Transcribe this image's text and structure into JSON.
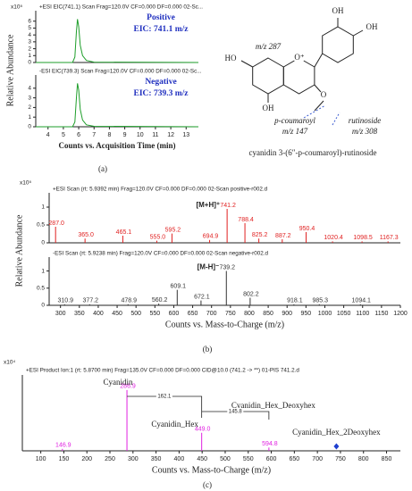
{
  "panel_labels": [
    "(a)",
    "(b)",
    "(c)"
  ],
  "structure": {
    "texts": [
      "HO",
      "OH",
      "OH",
      "OH",
      "O⁺",
      "O",
      "m/z 287",
      "p-coumaroyl",
      "rutinoside",
      "m/z 147",
      "m/z 308"
    ],
    "caption": "cyanidin 3-(6″-p-coumaroyl)-rutinoside"
  },
  "chart_data": [
    {
      "type": "line",
      "y_multiplier": "x10⁵",
      "header": "+ESI EIC(741.1) Scan Frag=120.0V CF=0.000 DF=0.000 02-Sc...",
      "annotations": [
        "Positive",
        "EIC: 741.1 m/z"
      ],
      "ylabel": "Relative Abundance",
      "x": [
        3.2,
        5.6,
        5.75,
        5.85,
        5.92,
        6.0,
        6.1,
        6.25,
        6.5,
        7,
        13.8
      ],
      "values": [
        0,
        0,
        0.8,
        4.5,
        6.3,
        5.2,
        2.5,
        1.0,
        0.3,
        0.05,
        0
      ],
      "color": "#1e9e2a",
      "xlim": [
        3.2,
        13.8
      ],
      "ylim": [
        0,
        7
      ],
      "yticks": [
        0,
        1,
        2,
        3,
        4,
        5,
        6
      ]
    },
    {
      "type": "line",
      "header": "-ESI EIC(739.3) Scan Frag=120.0V CF=0.000 DF=0.000 02-Sc...",
      "annotations": [
        "Negative",
        "EIC: 739.3 m/z"
      ],
      "xlabel": "Counts vs. Acquisition Time (min)",
      "x": [
        3.2,
        5.6,
        5.75,
        5.85,
        5.92,
        6.0,
        6.1,
        6.25,
        6.5,
        7,
        13.8
      ],
      "values": [
        0,
        0,
        0.5,
        3,
        4.5,
        3.8,
        1.8,
        0.7,
        0.2,
        0.05,
        0
      ],
      "color": "#1e9e2a",
      "xlim": [
        3.2,
        13.8
      ],
      "xticks": [
        4,
        5,
        6,
        7,
        8,
        9,
        10,
        11,
        12,
        13
      ],
      "ylim": [
        0,
        5
      ],
      "yticks": [
        0,
        1,
        2,
        3,
        4
      ]
    },
    {
      "type": "stem",
      "y_multiplier": "x10⁵",
      "header": "+ESI Scan (rt: 5.9392 min) Frag=120.0V CF=0.000 DF=0.000 02-Scan positive-r002.d",
      "annotations": [
        "[M+H]⁺"
      ],
      "ylabel": "Relative Abundance",
      "x": [
        287.0,
        365.0,
        465.1,
        555.0,
        595.2,
        694.9,
        741.2,
        788.4,
        825.2,
        887.2,
        950.4,
        1020.4,
        1098.5,
        1167.3
      ],
      "x_labels": [
        "287.0",
        "365.0",
        "465.1",
        "555.0",
        "595.2",
        "694.9",
        "741.2",
        "788.4",
        "825.2",
        "887.2",
        "950.4",
        "1020.4",
        "1098.5",
        "1167.3"
      ],
      "values": [
        0.45,
        0.12,
        0.2,
        0.06,
        0.26,
        0.08,
        0.95,
        0.55,
        0.12,
        0.1,
        0.3,
        0.04,
        0.04,
        0.04
      ],
      "color": "#e02020",
      "xlim": [
        270,
        1200
      ],
      "ylim": [
        0,
        1.3
      ],
      "yticks": [
        0,
        0.5,
        1
      ]
    },
    {
      "type": "stem",
      "header": "-ESI Scan (rt: 5.9238 min) Frag=120.0V CF=0.000 DF=0.000 02-Scan negative-r002.d",
      "annotations": [
        "[M-H]⁻"
      ],
      "xlabel": "Counts vs. Mass-to-Charge (m/z)",
      "x": [
        310.9,
        377.2,
        478.9,
        560.2,
        609.1,
        672.1,
        739.2,
        802.2,
        918.1,
        985.3,
        1094.1
      ],
      "x_labels": [
        "310.9",
        "377.2",
        "478.9",
        "560.2",
        "609.1",
        "672.1",
        "739.2",
        "802.2",
        "918.1",
        "985.3",
        "1094.1"
      ],
      "values": [
        0.03,
        0.03,
        0.03,
        0.05,
        0.45,
        0.14,
        1.0,
        0.22,
        0.03,
        0.03,
        0.03
      ],
      "color": "#333333",
      "xlim": [
        270,
        1200
      ],
      "xticks": [
        300,
        350,
        400,
        450,
        500,
        550,
        600,
        650,
        700,
        750,
        800,
        850,
        900,
        950,
        1000,
        1050,
        1100,
        1150,
        1200
      ],
      "ylim": [
        0,
        1.3
      ],
      "yticks": [
        0,
        0.5,
        1
      ]
    },
    {
      "type": "stem",
      "y_multiplier": "x10⁴",
      "header": "+ESI Product Ion:1 (rt: 5.8700 min) Frag=135.0V CF=0.000 DF=0.000 CID@10.0 (741.2 -> **) 01-PIS 741.2.d",
      "annotations": [
        "Cyanidin",
        "Cyanidin_Hex",
        "Cyanidin_Hex_Deoxyhex",
        "Cyanidin_Hex_2Deoxyhex",
        "162.1",
        "145.8"
      ],
      "xlabel": "Counts vs. Mass-to-Charge (m/z)",
      "x": [
        146.9,
        286.9,
        449.0,
        594.8
      ],
      "x_labels": [
        "146.9",
        "286.9",
        "449.0",
        "594.8"
      ],
      "values": [
        0.06,
        1.85,
        0.55,
        0.1
      ],
      "color": "#e020e0",
      "precursor_mz": 741.2,
      "precursor_color": "#1f3fcf",
      "xlim": [
        60,
        880
      ],
      "xticks": [
        100,
        150,
        200,
        250,
        300,
        350,
        400,
        450,
        500,
        550,
        600,
        650,
        700,
        750,
        800,
        850
      ],
      "ylim": [
        0,
        2.2
      ]
    }
  ]
}
